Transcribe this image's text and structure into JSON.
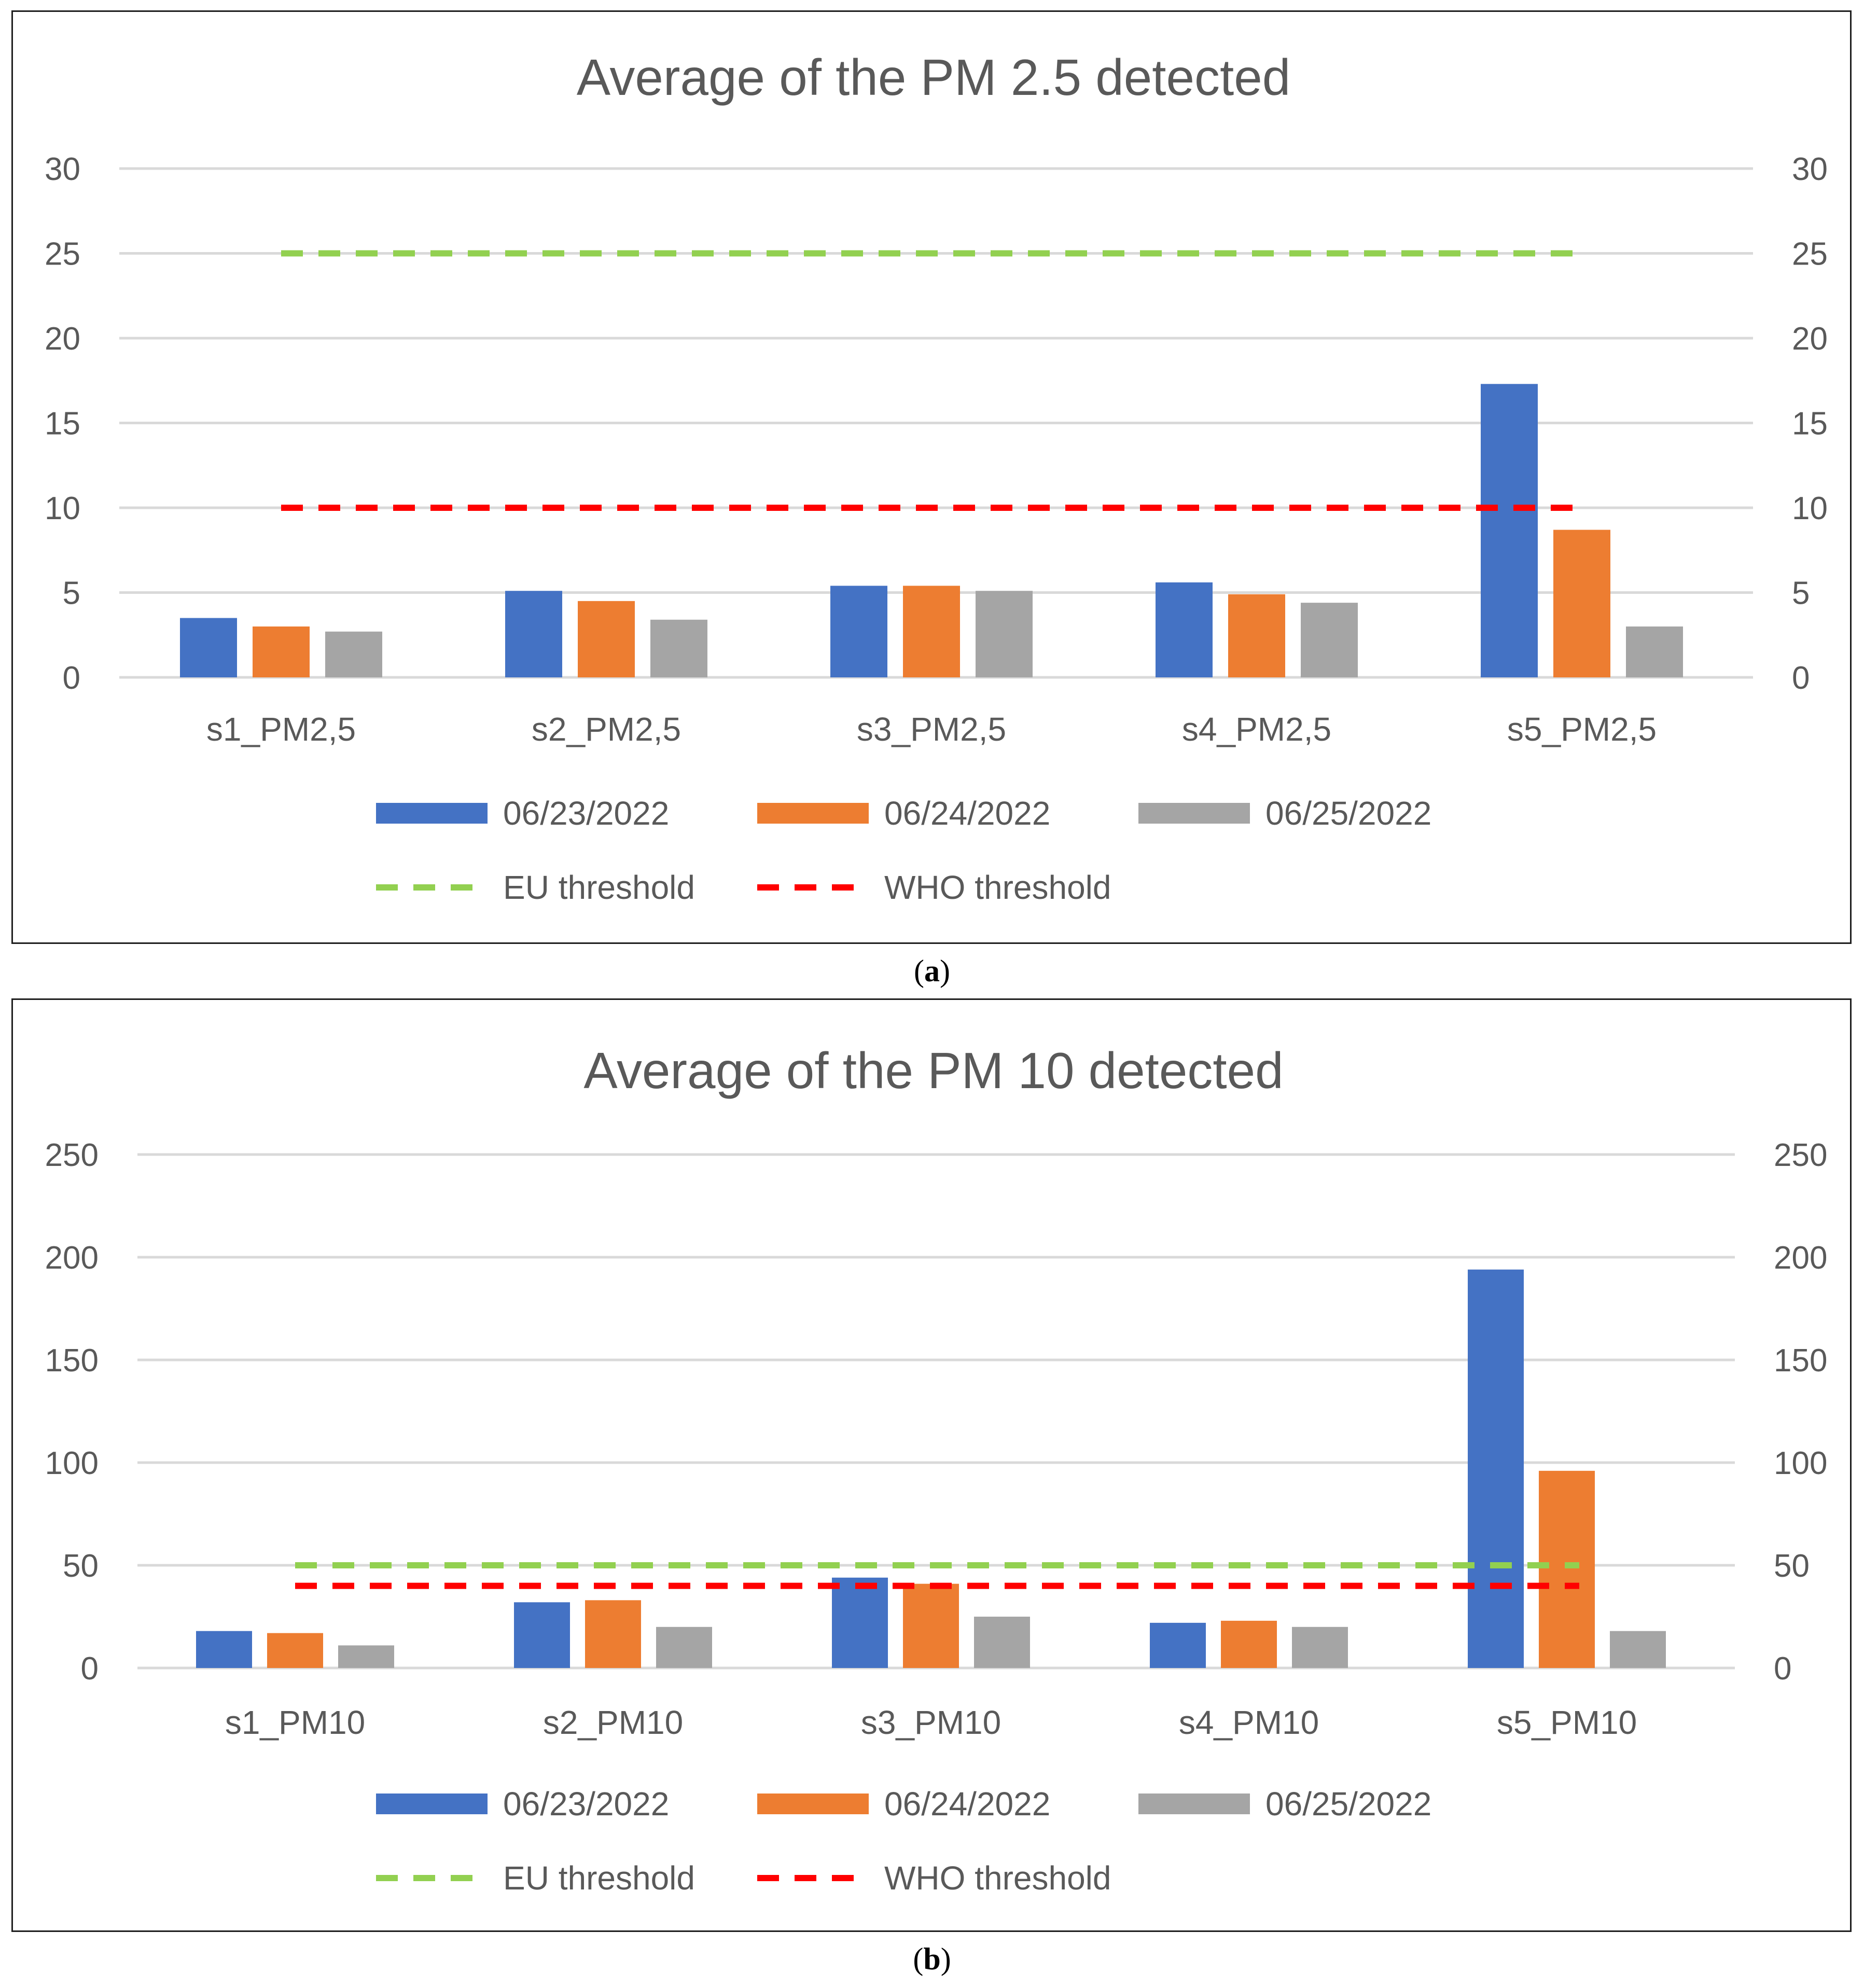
{
  "chart_data": [
    {
      "type": "bar",
      "title": "Average of the PM 2.5 detected",
      "caption_letter": "a",
      "categories": [
        "s1_PM2,5",
        "s2_PM2,5",
        "s3_PM2,5",
        "s4_PM2,5",
        "s5_PM2,5"
      ],
      "series": [
        {
          "name": "06/23/2022",
          "color": "#4472C4",
          "values": [
            3.5,
            5.1,
            5.4,
            5.6,
            17.3
          ]
        },
        {
          "name": "06/24/2022",
          "color": "#ED7D31",
          "values": [
            3.0,
            4.5,
            5.4,
            4.9,
            8.7
          ]
        },
        {
          "name": "06/25/2022",
          "color": "#A5A5A5",
          "values": [
            2.7,
            3.4,
            5.1,
            4.4,
            3.0
          ]
        }
      ],
      "reference_lines": [
        {
          "name": "EU threshold",
          "color": "#92D050",
          "value": 25
        },
        {
          "name": "WHO threshold",
          "color": "#FF0000",
          "value": 10
        }
      ],
      "ylim": [
        0,
        30
      ],
      "yticks": [
        "0",
        "5",
        "10",
        "15",
        "20",
        "25",
        "30"
      ],
      "secondary_axis": true,
      "grid": true,
      "legend": "bottom"
    },
    {
      "type": "bar",
      "title": "Average of the PM 10 detected",
      "caption_letter": "b",
      "categories": [
        "s1_PM10",
        "s2_PM10",
        "s3_PM10",
        "s4_PM10",
        "s5_PM10"
      ],
      "series": [
        {
          "name": "06/23/2022",
          "color": "#4472C4",
          "values": [
            18,
            32,
            44,
            22,
            194
          ]
        },
        {
          "name": "06/24/2022",
          "color": "#ED7D31",
          "values": [
            17,
            33,
            41,
            23,
            96
          ]
        },
        {
          "name": "06/25/2022",
          "color": "#A5A5A5",
          "values": [
            11,
            20,
            25,
            20,
            18
          ]
        }
      ],
      "reference_lines": [
        {
          "name": "EU threshold",
          "color": "#92D050",
          "value": 50
        },
        {
          "name": "WHO threshold",
          "color": "#FF0000",
          "value": 40
        }
      ],
      "ylim": [
        0,
        250
      ],
      "yticks": [
        "0",
        "50",
        "100",
        "150",
        "200",
        "250"
      ],
      "secondary_axis": true,
      "grid": true,
      "legend": "bottom"
    }
  ]
}
